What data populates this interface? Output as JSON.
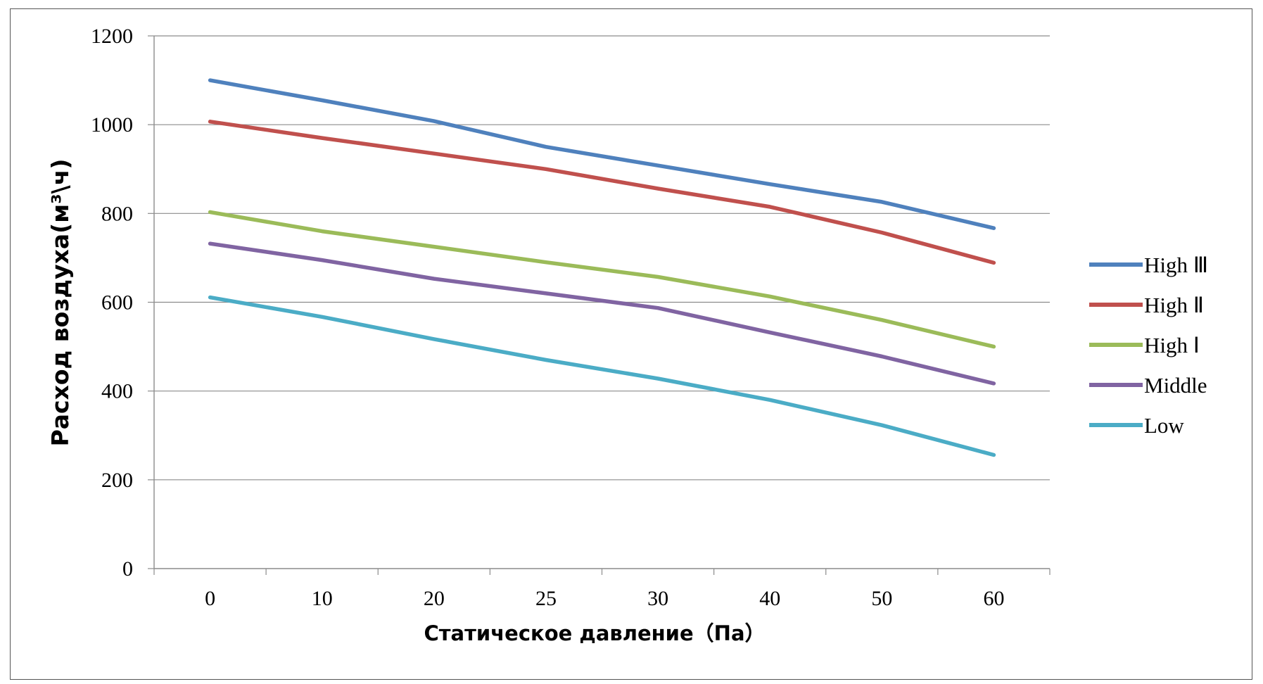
{
  "chart_data": {
    "type": "line",
    "title": "",
    "xlabel": "Статическое давление（Па）",
    "ylabel": "Расход воздуха(м³\\ч)",
    "categories": [
      "0",
      "10",
      "20",
      "25",
      "30",
      "40",
      "50",
      "60"
    ],
    "ylim": [
      0,
      1200
    ],
    "yticks": [
      0,
      200,
      400,
      600,
      800,
      1000,
      1200
    ],
    "grid": true,
    "legend_position": "right",
    "series": [
      {
        "name": "High Ⅲ",
        "color": "#4F81BD",
        "values": [
          1100,
          1055,
          1008,
          950,
          908,
          866,
          826,
          767
        ]
      },
      {
        "name": "High Ⅱ",
        "color": "#C0504D",
        "values": [
          1007,
          970,
          935,
          900,
          856,
          815,
          757,
          689
        ]
      },
      {
        "name": "High Ⅰ",
        "color": "#9BBB59",
        "values": [
          803,
          760,
          725,
          690,
          657,
          613,
          560,
          500
        ]
      },
      {
        "name": "Middle",
        "color": "#8064A2",
        "values": [
          732,
          695,
          653,
          620,
          587,
          532,
          478,
          417
        ]
      },
      {
        "name": "Low",
        "color": "#4BACC6",
        "values": [
          611,
          567,
          517,
          470,
          428,
          380,
          323,
          256
        ]
      }
    ]
  }
}
